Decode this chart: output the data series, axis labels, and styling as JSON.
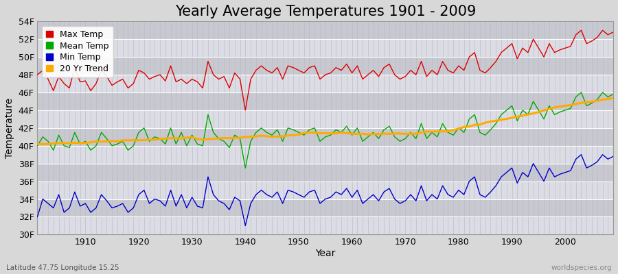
{
  "title": "Yearly Average Temperatures 1901 - 2009",
  "xlabel": "Year",
  "ylabel": "Temperature",
  "lat_lon_text": "Latitude 47.75 Longitude 15.25",
  "credit_text": "worldspecies.org",
  "years": [
    1901,
    1902,
    1903,
    1904,
    1905,
    1906,
    1907,
    1908,
    1909,
    1910,
    1911,
    1912,
    1913,
    1914,
    1915,
    1916,
    1917,
    1918,
    1919,
    1920,
    1921,
    1922,
    1923,
    1924,
    1925,
    1926,
    1927,
    1928,
    1929,
    1930,
    1931,
    1932,
    1933,
    1934,
    1935,
    1936,
    1937,
    1938,
    1939,
    1940,
    1941,
    1942,
    1943,
    1944,
    1945,
    1946,
    1947,
    1948,
    1949,
    1950,
    1951,
    1952,
    1953,
    1954,
    1955,
    1956,
    1957,
    1958,
    1959,
    1960,
    1961,
    1962,
    1963,
    1964,
    1965,
    1966,
    1967,
    1968,
    1969,
    1970,
    1971,
    1972,
    1973,
    1974,
    1975,
    1976,
    1977,
    1978,
    1979,
    1980,
    1981,
    1982,
    1983,
    1984,
    1985,
    1986,
    1987,
    1988,
    1989,
    1990,
    1991,
    1992,
    1993,
    1994,
    1995,
    1996,
    1997,
    1998,
    1999,
    2000,
    2001,
    2002,
    2003,
    2004,
    2005,
    2006,
    2007,
    2008,
    2009
  ],
  "max_temp": [
    48.0,
    48.5,
    47.5,
    46.2,
    47.8,
    47.0,
    46.5,
    48.8,
    47.2,
    47.3,
    46.2,
    47.0,
    48.5,
    47.8,
    46.8,
    47.2,
    47.5,
    46.5,
    47.0,
    48.5,
    48.2,
    47.5,
    47.8,
    48.0,
    47.3,
    49.0,
    47.2,
    47.5,
    47.0,
    47.5,
    47.2,
    46.5,
    49.5,
    48.0,
    47.5,
    47.8,
    46.5,
    48.2,
    47.5,
    44.0,
    47.5,
    48.5,
    49.0,
    48.5,
    48.2,
    48.8,
    47.5,
    49.0,
    48.8,
    48.5,
    48.2,
    48.8,
    49.0,
    47.5,
    48.0,
    48.2,
    48.8,
    48.5,
    49.2,
    48.2,
    49.0,
    47.5,
    48.0,
    48.5,
    47.8,
    48.8,
    49.2,
    48.0,
    47.5,
    47.8,
    48.5,
    48.0,
    49.5,
    47.8,
    48.5,
    48.0,
    49.5,
    48.5,
    48.2,
    49.0,
    48.5,
    50.0,
    50.5,
    48.5,
    48.2,
    48.8,
    49.5,
    50.5,
    51.0,
    51.5,
    49.8,
    51.0,
    50.5,
    52.0,
    51.0,
    50.0,
    51.5,
    50.5,
    50.8,
    51.0,
    51.2,
    52.5,
    53.0,
    51.5,
    51.8,
    52.2,
    53.0,
    52.5,
    52.8
  ],
  "mean_temp": [
    40.0,
    41.0,
    40.5,
    39.5,
    41.2,
    40.0,
    39.8,
    41.5,
    40.2,
    40.5,
    39.5,
    40.0,
    41.5,
    40.8,
    40.0,
    40.2,
    40.5,
    39.5,
    40.0,
    41.5,
    42.0,
    40.5,
    41.0,
    40.8,
    40.2,
    42.0,
    40.2,
    41.5,
    40.0,
    41.2,
    40.2,
    40.0,
    43.5,
    41.5,
    40.8,
    40.5,
    39.8,
    41.2,
    40.8,
    37.5,
    40.5,
    41.5,
    42.0,
    41.5,
    41.2,
    41.8,
    40.5,
    42.0,
    41.8,
    41.5,
    41.2,
    41.8,
    42.0,
    40.5,
    41.0,
    41.2,
    41.8,
    41.5,
    42.2,
    41.2,
    42.0,
    40.5,
    41.0,
    41.5,
    40.8,
    41.8,
    42.2,
    41.0,
    40.5,
    40.8,
    41.5,
    40.8,
    42.5,
    40.8,
    41.5,
    41.0,
    42.5,
    41.5,
    41.2,
    42.0,
    41.5,
    43.0,
    43.5,
    41.5,
    41.2,
    41.8,
    42.5,
    43.5,
    44.0,
    44.5,
    42.8,
    44.0,
    43.5,
    45.0,
    44.0,
    43.0,
    44.5,
    43.5,
    43.8,
    44.0,
    44.2,
    45.5,
    46.0,
    44.5,
    44.8,
    45.2,
    46.0,
    45.5,
    45.8
  ],
  "min_temp": [
    32.0,
    34.0,
    33.5,
    33.0,
    34.5,
    32.5,
    33.0,
    34.8,
    33.2,
    33.5,
    32.5,
    33.0,
    34.5,
    33.8,
    33.0,
    33.2,
    33.5,
    32.5,
    33.0,
    34.5,
    35.0,
    33.5,
    34.0,
    33.8,
    33.2,
    35.0,
    33.2,
    34.5,
    33.0,
    34.2,
    33.2,
    33.0,
    36.5,
    34.5,
    33.8,
    33.5,
    32.8,
    34.2,
    33.8,
    31.0,
    33.5,
    34.5,
    35.0,
    34.5,
    34.2,
    34.8,
    33.5,
    35.0,
    34.8,
    34.5,
    34.2,
    34.8,
    35.0,
    33.5,
    34.0,
    34.2,
    34.8,
    34.5,
    35.2,
    34.2,
    35.0,
    33.5,
    34.0,
    34.5,
    33.8,
    34.8,
    35.2,
    34.0,
    33.5,
    33.8,
    34.5,
    33.8,
    35.5,
    33.8,
    34.5,
    34.0,
    35.5,
    34.5,
    34.2,
    35.0,
    34.5,
    36.0,
    36.5,
    34.5,
    34.2,
    34.8,
    35.5,
    36.5,
    37.0,
    37.5,
    35.8,
    37.0,
    36.5,
    38.0,
    37.0,
    36.0,
    37.5,
    36.5,
    36.8,
    37.0,
    37.2,
    38.5,
    39.0,
    37.5,
    37.8,
    38.2,
    39.0,
    38.5,
    38.8
  ],
  "bg_color": "#d8d8d8",
  "plot_bg_color": "#e0e0e8",
  "stripe_light": "#dcdce4",
  "stripe_dark": "#c8c8d0",
  "grid_color": "#ffffff",
  "vgrid_color": "#b8b8c8",
  "max_color": "#dd0000",
  "mean_color": "#00aa00",
  "min_color": "#0000cc",
  "trend_color": "#ffaa00",
  "ylim": [
    30,
    54
  ],
  "yticks": [
    30,
    32,
    34,
    36,
    38,
    40,
    42,
    44,
    46,
    48,
    50,
    52,
    54
  ],
  "ytick_labels": [
    "30F",
    "32F",
    "34F",
    "36F",
    "38F",
    "40F",
    "42F",
    "44F",
    "46F",
    "48F",
    "50F",
    "52F",
    "54F"
  ],
  "xlim": [
    1901,
    2009
  ],
  "title_fontsize": 15,
  "axis_label_fontsize": 10,
  "tick_fontsize": 9,
  "legend_fontsize": 9
}
